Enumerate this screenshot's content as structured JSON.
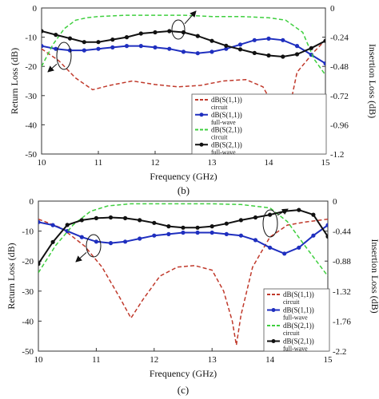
{
  "chart_data": [
    {
      "type": "line",
      "panel_label": "(b)",
      "xlabel": "Frequency (GHz)",
      "ylabel_left": "Return Loss (dB)",
      "ylabel_right": "Insertion Loss (dB)",
      "xlim": [
        10,
        15
      ],
      "ylim_left": [
        -50,
        0
      ],
      "ylim_right": [
        -1.2,
        0
      ],
      "xticks": [
        "10",
        "11",
        "12",
        "13",
        "14",
        "15"
      ],
      "yticks_left": [
        "0",
        "-10",
        "-20",
        "-30",
        "-40",
        "-50"
      ],
      "yticks_right": [
        "0",
        "-0.24",
        "-0.48",
        "-0.72",
        "-0.96",
        "-1.2"
      ],
      "legend": [
        "dB(S(1,1))",
        "circuit",
        "dB(S(1,1))",
        "full-wave",
        "dB(S(2,1))",
        "circuit",
        "dB(S(2,1))",
        "full-wave"
      ],
      "series": [
        {
          "name": "dB(S(1,1)) circuit",
          "axis": "left",
          "color": "#c0392b",
          "style": "dashed",
          "marker": false,
          "x": [
            10,
            10.3,
            10.6,
            10.9,
            11.2,
            11.6,
            12.0,
            12.4,
            12.8,
            13.2,
            13.6,
            13.9,
            14.1,
            14.2,
            14.26,
            14.35,
            14.5,
            14.8,
            15
          ],
          "y": [
            -14,
            -18,
            -24,
            -28,
            -26.5,
            -25,
            -26.2,
            -27,
            -26.5,
            -25,
            -24.5,
            -27,
            -34,
            -43,
            -48,
            -36,
            -22,
            -15,
            -11
          ]
        },
        {
          "name": "dB(S(1,1)) full-wave",
          "axis": "left",
          "color": "#1f2fbf",
          "style": "solid",
          "marker": true,
          "x": [
            10,
            10.25,
            10.5,
            10.75,
            11,
            11.25,
            11.5,
            11.75,
            12,
            12.25,
            12.5,
            12.75,
            13,
            13.25,
            13.5,
            13.75,
            14,
            14.25,
            14.5,
            14.75,
            15
          ],
          "y": [
            -13,
            -14,
            -14.5,
            -14.5,
            -14,
            -13.5,
            -13,
            -13,
            -13.5,
            -14,
            -15,
            -15.5,
            -15,
            -14,
            -12.5,
            -11,
            -10.5,
            -11,
            -13,
            -16,
            -19
          ]
        },
        {
          "name": "dB(S(2,1)) circuit",
          "axis": "right",
          "color": "#3ecf3e",
          "style": "dashed",
          "marker": false,
          "x": [
            10,
            10.2,
            10.4,
            10.6,
            10.8,
            11,
            11.5,
            12,
            12.5,
            13,
            13.5,
            14,
            14.3,
            14.6,
            14.8,
            15
          ],
          "y": [
            -0.48,
            -0.3,
            -0.17,
            -0.1,
            -0.08,
            -0.07,
            -0.06,
            -0.06,
            -0.06,
            -0.07,
            -0.07,
            -0.08,
            -0.1,
            -0.2,
            -0.42,
            -0.55
          ]
        },
        {
          "name": "dB(S(2,1)) full-wave",
          "axis": "right",
          "color": "#111111",
          "style": "solid",
          "marker": true,
          "x": [
            10,
            10.25,
            10.5,
            10.75,
            11,
            11.25,
            11.5,
            11.75,
            12,
            12.25,
            12.5,
            12.75,
            13,
            13.25,
            13.5,
            13.75,
            14,
            14.25,
            14.5,
            14.75,
            15
          ],
          "y": [
            -0.19,
            -0.22,
            -0.25,
            -0.28,
            -0.28,
            -0.26,
            -0.24,
            -0.21,
            -0.2,
            -0.19,
            -0.2,
            -0.23,
            -0.27,
            -0.31,
            -0.34,
            -0.37,
            -0.39,
            -0.4,
            -0.38,
            -0.33,
            -0.27
          ]
        }
      ]
    },
    {
      "type": "line",
      "panel_label": "(c)",
      "xlabel": "Frequency (GHz)",
      "ylabel_left": "Return Loss (dB)",
      "ylabel_right": "Insertion Loss (dB)",
      "xlim": [
        10,
        15
      ],
      "ylim_left": [
        -50,
        0
      ],
      "ylim_right": [
        -2.2,
        0
      ],
      "xticks": [
        "10",
        "11",
        "12",
        "13",
        "14",
        "15"
      ],
      "yticks_left": [
        "0",
        "-10",
        "-20",
        "-30",
        "-40",
        "-50"
      ],
      "yticks_right": [
        "0",
        "-0.44",
        "-0.88",
        "-1.32",
        "-1.76",
        "-2.2"
      ],
      "legend": [
        "dB(S(1,1))",
        "circuit",
        "dB(S(1,1))",
        "full-wave",
        "dB(S(2,1))",
        "circuit",
        "dB(S(2,1))",
        "full-wave"
      ],
      "series": [
        {
          "name": "dB(S(1,1)) circuit",
          "axis": "left",
          "color": "#c0392b",
          "style": "dashed",
          "marker": false,
          "x": [
            10,
            10.4,
            10.8,
            11.1,
            11.4,
            11.6,
            11.8,
            12.1,
            12.4,
            12.7,
            13.0,
            13.2,
            13.35,
            13.42,
            13.5,
            13.7,
            14.0,
            14.3,
            14.6,
            15
          ],
          "y": [
            -6,
            -9,
            -15,
            -22,
            -32,
            -39,
            -33,
            -25,
            -22,
            -21.5,
            -23,
            -30,
            -40,
            -48,
            -38,
            -22,
            -12,
            -8,
            -7,
            -6
          ]
        },
        {
          "name": "dB(S(1,1)) full-wave",
          "axis": "left",
          "color": "#1f2fbf",
          "style": "solid",
          "marker": true,
          "x": [
            10,
            10.25,
            10.5,
            10.75,
            11,
            11.25,
            11.5,
            11.75,
            12,
            12.25,
            12.5,
            12.75,
            13,
            13.25,
            13.5,
            13.75,
            14,
            14.25,
            14.5,
            14.75,
            15
          ],
          "y": [
            -7,
            -8,
            -10,
            -12,
            -13.5,
            -14,
            -13.5,
            -12.5,
            -11.5,
            -11,
            -10.5,
            -10.5,
            -10.5,
            -11,
            -11.5,
            -13,
            -15.5,
            -17.5,
            -15.5,
            -11.5,
            -8
          ]
        },
        {
          "name": "dB(S(2,1)) circuit",
          "axis": "right",
          "color": "#3ecf3e",
          "style": "dashed",
          "marker": false,
          "x": [
            10,
            10.3,
            10.6,
            10.9,
            11.2,
            11.6,
            12,
            12.5,
            13,
            13.5,
            14,
            14.3,
            14.6,
            15
          ],
          "y": [
            -1.05,
            -0.65,
            -0.35,
            -0.15,
            -0.07,
            -0.04,
            -0.04,
            -0.04,
            -0.04,
            -0.05,
            -0.1,
            -0.3,
            -0.65,
            -1.1
          ]
        },
        {
          "name": "dB(S(2,1)) full-wave",
          "axis": "right",
          "color": "#111111",
          "style": "solid",
          "marker": true,
          "x": [
            10,
            10.25,
            10.5,
            10.75,
            11,
            11.25,
            11.5,
            11.75,
            12,
            12.25,
            12.5,
            12.75,
            13,
            13.25,
            13.5,
            13.75,
            14,
            14.25,
            14.5,
            14.75,
            15
          ],
          "y": [
            -0.92,
            -0.6,
            -0.35,
            -0.28,
            -0.25,
            -0.24,
            -0.25,
            -0.28,
            -0.32,
            -0.37,
            -0.39,
            -0.39,
            -0.37,
            -0.33,
            -0.28,
            -0.24,
            -0.2,
            -0.15,
            -0.13,
            -0.2,
            -0.52
          ]
        }
      ]
    }
  ]
}
